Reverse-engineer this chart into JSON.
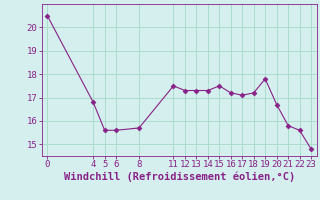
{
  "x": [
    0,
    4,
    5,
    6,
    8,
    11,
    12,
    13,
    14,
    15,
    16,
    17,
    18,
    19,
    20,
    21,
    22,
    23
  ],
  "y": [
    20.5,
    16.8,
    15.6,
    15.6,
    15.7,
    17.5,
    17.3,
    17.3,
    17.3,
    17.5,
    17.2,
    17.1,
    17.2,
    17.8,
    16.7,
    15.8,
    15.6,
    14.8
  ],
  "line_color": "#882288",
  "marker": "D",
  "marker_size": 2.5,
  "bg_color": "#d5eeee",
  "grid_color": "#aaddcc",
  "xlabel": "Windchill (Refroidissement éolien,°C)",
  "xlabel_color": "#882288",
  "xlabel_fontsize": 7.5,
  "tick_color": "#882288",
  "tick_fontsize": 6.5,
  "ylim": [
    14.5,
    21.0
  ],
  "xlim": [
    -0.5,
    23.5
  ],
  "yticks": [
    15,
    16,
    17,
    18,
    19,
    20
  ],
  "xticks": [
    0,
    4,
    5,
    6,
    8,
    11,
    12,
    13,
    14,
    15,
    16,
    17,
    18,
    19,
    20,
    21,
    22,
    23
  ]
}
